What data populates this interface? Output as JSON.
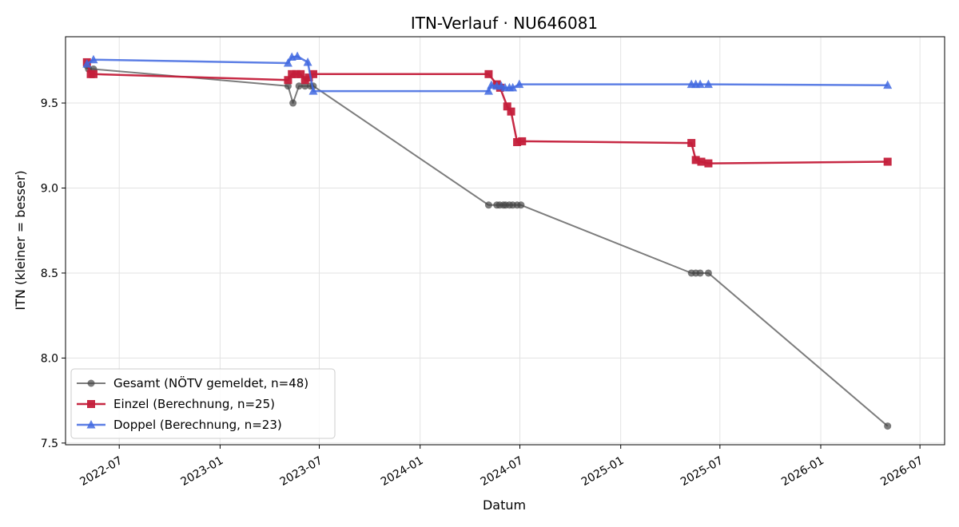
{
  "chart_data": {
    "type": "line",
    "title": "ITN-Verlauf · NU646081",
    "xlabel": "Datum",
    "ylabel": "ITN  (kleiner = besser)",
    "x_ticks": [
      "2022-07",
      "2023-01",
      "2023-07",
      "2024-01",
      "2024-07",
      "2025-01",
      "2025-07",
      "2026-01",
      "2026-07"
    ],
    "y_ticks": [
      "7.5",
      "8.0",
      "8.5",
      "9.0",
      "9.5"
    ],
    "xlim": [
      "2022-03-25",
      "2026-08-15"
    ],
    "ylim": [
      7.49,
      9.89
    ],
    "grid": true,
    "legend_position": "lower-left",
    "series": [
      {
        "name": "Gesamt (NÖTV gemeldet, n=48)",
        "color": "#444444",
        "marker": "circle",
        "points": [
          [
            "2022-05-03",
            9.72
          ],
          [
            "2022-05-06",
            9.7
          ],
          [
            "2022-05-15",
            9.7
          ],
          [
            "2023-05-05",
            9.6
          ],
          [
            "2023-05-14",
            9.5
          ],
          [
            "2023-05-25",
            9.6
          ],
          [
            "2023-06-05",
            9.6
          ],
          [
            "2023-06-15",
            9.6
          ],
          [
            "2023-06-20",
            9.6
          ],
          [
            "2024-05-05",
            8.9
          ],
          [
            "2024-05-20",
            8.9
          ],
          [
            "2024-05-25",
            8.9
          ],
          [
            "2024-06-01",
            8.9
          ],
          [
            "2024-06-05",
            8.9
          ],
          [
            "2024-06-12",
            8.9
          ],
          [
            "2024-06-18",
            8.9
          ],
          [
            "2024-06-26",
            8.9
          ],
          [
            "2024-07-03",
            8.9
          ],
          [
            "2025-05-10",
            8.5
          ],
          [
            "2025-05-18",
            8.5
          ],
          [
            "2025-05-26",
            8.5
          ],
          [
            "2025-06-10",
            8.5
          ],
          [
            "2026-05-03",
            7.6
          ]
        ]
      },
      {
        "name": "Einzel (Berechnung, n=25)",
        "color": "#c41e3a",
        "marker": "square",
        "points": [
          [
            "2022-05-03",
            9.74
          ],
          [
            "2022-05-10",
            9.67
          ],
          [
            "2022-05-15",
            9.67
          ],
          [
            "2023-05-05",
            9.635
          ],
          [
            "2023-05-12",
            9.67
          ],
          [
            "2023-05-20",
            9.67
          ],
          [
            "2023-05-28",
            9.67
          ],
          [
            "2023-06-05",
            9.635
          ],
          [
            "2023-06-12",
            9.65
          ],
          [
            "2023-06-20",
            9.67
          ],
          [
            "2024-05-05",
            9.67
          ],
          [
            "2024-05-20",
            9.61
          ],
          [
            "2024-05-26",
            9.59
          ],
          [
            "2024-06-08",
            9.48
          ],
          [
            "2024-06-15",
            9.45
          ],
          [
            "2024-06-26",
            9.27
          ],
          [
            "2024-07-05",
            9.275
          ],
          [
            "2025-05-10",
            9.265
          ],
          [
            "2025-05-18",
            9.165
          ],
          [
            "2025-05-28",
            9.155
          ],
          [
            "2025-06-10",
            9.145
          ],
          [
            "2026-05-03",
            9.155
          ]
        ]
      },
      {
        "name": "Doppel (Berechnung, n=23)",
        "color": "#4169e1",
        "marker": "triangle",
        "points": [
          [
            "2022-05-03",
            9.73
          ],
          [
            "2022-05-15",
            9.755
          ],
          [
            "2023-05-05",
            9.735
          ],
          [
            "2023-05-12",
            9.77
          ],
          [
            "2023-05-22",
            9.775
          ],
          [
            "2023-06-10",
            9.74
          ],
          [
            "2023-06-20",
            9.57
          ],
          [
            "2024-05-05",
            9.57
          ],
          [
            "2024-05-10",
            9.605
          ],
          [
            "2024-05-20",
            9.6
          ],
          [
            "2024-05-28",
            9.6
          ],
          [
            "2024-06-04",
            9.59
          ],
          [
            "2024-06-12",
            9.59
          ],
          [
            "2024-06-18",
            9.59
          ],
          [
            "2024-06-30",
            9.61
          ],
          [
            "2025-05-10",
            9.61
          ],
          [
            "2025-05-18",
            9.61
          ],
          [
            "2025-05-26",
            9.61
          ],
          [
            "2025-06-10",
            9.61
          ],
          [
            "2026-05-03",
            9.605
          ]
        ]
      }
    ]
  }
}
